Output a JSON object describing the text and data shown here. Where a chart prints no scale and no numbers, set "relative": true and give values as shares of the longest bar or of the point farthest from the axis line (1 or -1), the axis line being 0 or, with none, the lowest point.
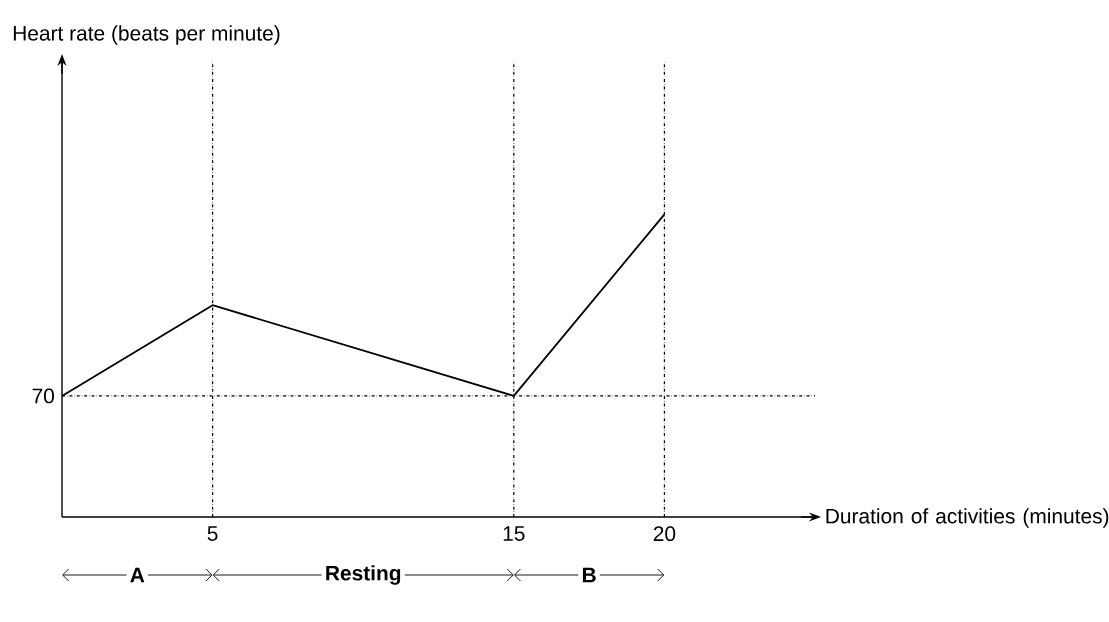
{
  "chart_data": {
    "type": "line",
    "relative": true,
    "xlabel": "Duration of activities (minutes)",
    "x": [
      0,
      5,
      15,
      20
    ],
    "series": [
      {
        "color": "#000000",
        "values": [
          0.4,
          0.7,
          0.4,
          1.0
        ]
      }
    ],
    "xlim": [
      0,
      25
    ],
    "xticks": [
      5,
      15,
      20
    ],
    "ref_lines": [
      {
        "axis": "x",
        "value": 5
      },
      {
        "axis": "x",
        "value": 15
      },
      {
        "axis": "x",
        "value": 20
      },
      {
        "axis": "y",
        "value": 0.4
      }
    ],
    "annotations": [
      "Heart rate (beats per minute)",
      "70",
      "A",
      "Resting",
      "B"
    ]
  }
}
